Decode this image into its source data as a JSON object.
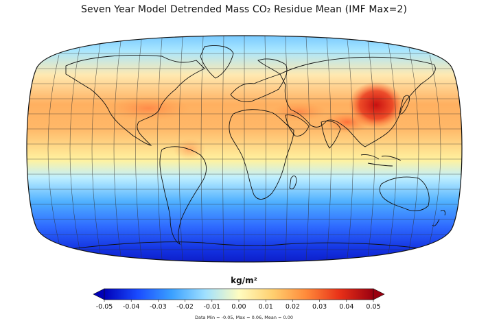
{
  "title": "Seven Year Model Detrended Mass CO₂ Residue Mean (IMF Max=2)",
  "colorbar": {
    "unit_label": "kg/m²",
    "ticks": [
      "-0.05",
      "-0.04",
      "-0.03",
      "-0.02",
      "-0.01",
      "0.00",
      "0.01",
      "0.02",
      "0.03",
      "0.04",
      "0.05"
    ],
    "colors": [
      "#0000b8",
      "#1a4cff",
      "#3aa0ff",
      "#9fe0ff",
      "#fffcc0",
      "#ffd070",
      "#ff8a3a",
      "#e83018",
      "#9a0010"
    ]
  },
  "stats_text": "Data Min = -0.05, Max = 0.06, Mean = 0.00",
  "map": {
    "projection": "robinson",
    "band_colors": {
      "polar_south": "#0a1ad8",
      "south_mid": "#2f7dff",
      "south_low": "#8fd8ff",
      "equator": "#ffe68a",
      "north_low": "#ffb060",
      "north_mid": "#ffd28a",
      "north_high": "#a8e6ff",
      "polar_north": "#5cb8ff"
    },
    "hotspot_color": "#c81010"
  }
}
